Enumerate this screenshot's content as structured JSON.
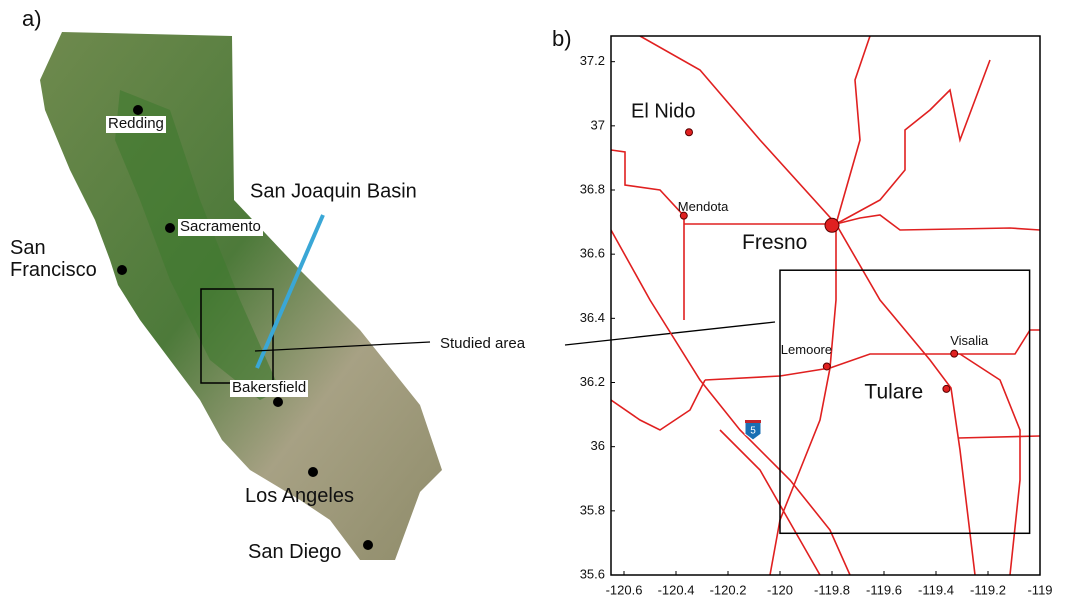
{
  "panel_a": {
    "label": "a)",
    "cities": [
      {
        "name": "Redding"
      },
      {
        "name": "Sacramento"
      },
      {
        "name": "San Francisco"
      },
      {
        "name": "Bakersfield"
      },
      {
        "name": "Los Angeles"
      },
      {
        "name": "San Diego"
      }
    ],
    "basin_label": "San Joaquin Basin",
    "study_label": "Studied area"
  },
  "panel_b": {
    "label": "b)",
    "xlim": [
      -120.65,
      -119
    ],
    "ylim": [
      35.6,
      37.28
    ],
    "xticks": [
      -120.6,
      -120.4,
      -120.2,
      -120,
      -119.8,
      -119.6,
      -119.4,
      -119.2,
      -119
    ],
    "yticks": [
      35.6,
      35.8,
      36,
      36.2,
      36.4,
      36.6,
      36.8,
      37,
      37.2
    ],
    "cities": [
      {
        "name": "El Nido",
        "lon": -120.35,
        "lat": 36.98
      },
      {
        "name": "Mendota",
        "lon": -120.37,
        "lat": 36.72
      },
      {
        "name": "Fresno",
        "lon": -119.8,
        "lat": 36.69
      },
      {
        "name": "Lemoore",
        "lon": -119.82,
        "lat": 36.25
      },
      {
        "name": "Visalia",
        "lon": -119.33,
        "lat": 36.29
      },
      {
        "name": "Tulare",
        "lon": -119.36,
        "lat": 36.18
      }
    ],
    "study_box": {
      "lon": [
        -120,
        -119.04
      ],
      "lat": [
        35.73,
        36.55
      ]
    },
    "interstate": "5"
  }
}
